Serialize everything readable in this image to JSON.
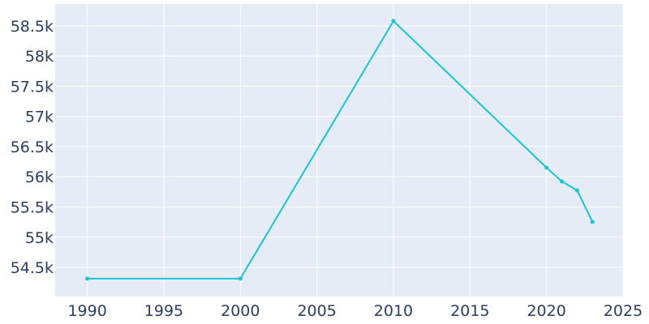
{
  "chart_data": {
    "type": "line",
    "x": [
      1990,
      2000,
      2010,
      2020,
      2021,
      2022,
      2023
    ],
    "series": [
      {
        "color": "#17c6cf",
        "values": [
          54312,
          54312,
          58581,
          56151,
          55923,
          55775,
          55252
        ]
      }
    ],
    "xlim": [
      1987.9,
      2025
    ],
    "xticks": [
      1990,
      1995,
      2000,
      2005,
      2010,
      2015,
      2020,
      2025
    ],
    "ylim": [
      54017,
      58862
    ],
    "yticks": [
      {
        "value": 54500,
        "label": "54.5k"
      },
      {
        "value": 55000,
        "label": "55k"
      },
      {
        "value": 55500,
        "label": "55.5k"
      },
      {
        "value": 56000,
        "label": "56k"
      },
      {
        "value": 56500,
        "label": "56.5k"
      },
      {
        "value": 57000,
        "label": "57k"
      },
      {
        "value": 57500,
        "label": "57.5k"
      },
      {
        "value": 58000,
        "label": "58k"
      },
      {
        "value": 58500,
        "label": "58.5k"
      }
    ],
    "grid": true
  }
}
